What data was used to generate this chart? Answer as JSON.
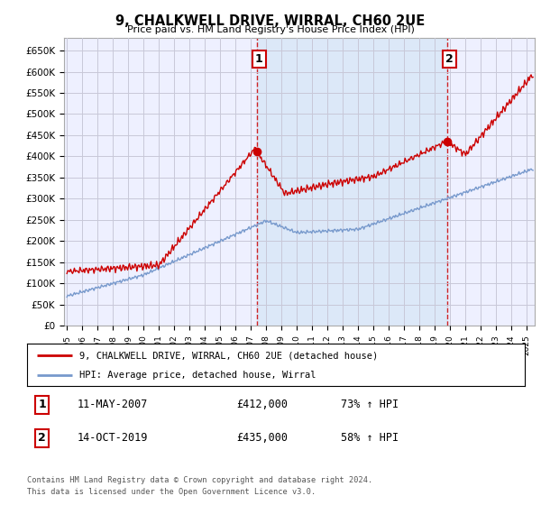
{
  "title": "9, CHALKWELL DRIVE, WIRRAL, CH60 2UE",
  "subtitle": "Price paid vs. HM Land Registry's House Price Index (HPI)",
  "ylim": [
    0,
    680000
  ],
  "yticks": [
    0,
    50000,
    100000,
    150000,
    200000,
    250000,
    300000,
    350000,
    400000,
    450000,
    500000,
    550000,
    600000,
    650000
  ],
  "xlim_start": 1994.8,
  "xlim_end": 2025.5,
  "bg_color": "#eef0ff",
  "shaded_color": "#dce8f8",
  "grid_color": "#c8c8d8",
  "sale1_x": 2007.37,
  "sale1_y": 412000,
  "sale2_x": 2019.79,
  "sale2_y": 435000,
  "legend_entry1": "9, CHALKWELL DRIVE, WIRRAL, CH60 2UE (detached house)",
  "legend_entry2": "HPI: Average price, detached house, Wirral",
  "ann1_label": "1",
  "ann2_label": "2",
  "footer1": "Contains HM Land Registry data © Crown copyright and database right 2024.",
  "footer2": "This data is licensed under the Open Government Licence v3.0.",
  "table_row1": [
    "1",
    "11-MAY-2007",
    "£412,000",
    "73% ↑ HPI"
  ],
  "table_row2": [
    "2",
    "14-OCT-2019",
    "£435,000",
    "58% ↑ HPI"
  ],
  "red_color": "#cc0000",
  "blue_color": "#7799cc"
}
